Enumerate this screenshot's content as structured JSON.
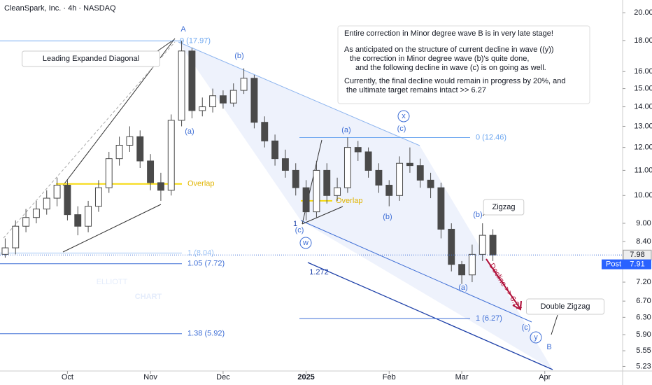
{
  "chart_data": {
    "type": "candlestick",
    "title": "CleanSpark, Inc. · 4h · NASDAQ",
    "log_scale": true,
    "color_up": "#ffffff",
    "color_down": "#4a4a4a",
    "xlim": [
      -0.5,
      59.5
    ],
    "xticks": [
      {
        "value": 6,
        "label": "Oct"
      },
      {
        "value": 14,
        "label": "Nov"
      },
      {
        "value": 21,
        "label": "Dec"
      },
      {
        "value": 29,
        "label": "2025"
      },
      {
        "value": 37,
        "label": "Feb"
      },
      {
        "value": 44,
        "label": "Mar"
      },
      {
        "value": 52,
        "label": "Apr"
      }
    ],
    "ylim": [
      5.14,
      20.99
    ],
    "yticks": [
      {
        "value": 5.23,
        "label": "5.23"
      },
      {
        "value": 5.55,
        "label": "5.55"
      },
      {
        "value": 5.9,
        "label": "5.90"
      },
      {
        "value": 6.3,
        "label": "6.30"
      },
      {
        "value": 6.7,
        "label": "6.70"
      },
      {
        "value": 7.2,
        "label": "7.20"
      },
      {
        "value": 8.4,
        "label": "8.40"
      },
      {
        "value": 9,
        "label": "9.00"
      },
      {
        "value": 10,
        "label": "10.00"
      },
      {
        "value": 11,
        "label": "11.00"
      },
      {
        "value": 12,
        "label": "12.00"
      },
      {
        "value": 13,
        "label": "13.00"
      },
      {
        "value": 14,
        "label": "14.00"
      },
      {
        "value": 15,
        "label": "15.00"
      },
      {
        "value": 16,
        "label": "16.00"
      },
      {
        "value": 18,
        "label": "18.00"
      },
      {
        "value": 20,
        "label": "20.00"
      }
    ],
    "open": [
      8.0,
      8.2,
      8.9,
      9.2,
      9.5,
      9.9,
      10.4,
      9.3,
      8.9,
      9.6,
      10.3,
      11.5,
      12.1,
      12.5,
      11.4,
      10.5,
      10.2,
      13.3,
      17.3,
      13.8,
      14.0,
      14.6,
      14.2,
      14.9,
      15.6,
      13.2,
      12.3,
      11.5,
      11.0,
      10.3,
      9.4,
      11.0,
      10.0,
      10.3,
      12.0,
      11.8,
      11.0,
      10.4,
      10.0,
      11.3,
      11.2,
      10.6,
      10.3,
      8.8,
      7.7,
      7.4,
      8.0,
      8.6
    ],
    "high": [
      8.5,
      9.1,
      9.5,
      9.8,
      10.2,
      10.7,
      10.6,
      9.6,
      9.8,
      10.6,
      11.8,
      12.5,
      13.0,
      12.8,
      11.7,
      10.9,
      13.6,
      17.97,
      17.5,
      14.5,
      15.0,
      14.9,
      15.3,
      16.2,
      15.8,
      13.5,
      12.6,
      11.9,
      11.3,
      10.6,
      11.4,
      11.3,
      10.7,
      12.46,
      12.3,
      12.0,
      11.3,
      10.6,
      11.6,
      12.0,
      11.5,
      10.9,
      10.5,
      9.0,
      7.8,
      8.3,
      9.0,
      8.8
    ],
    "low": [
      7.9,
      8.0,
      8.7,
      9.0,
      9.3,
      9.6,
      9.1,
      8.6,
      8.7,
      9.4,
      10.1,
      11.2,
      11.8,
      11.1,
      10.2,
      9.8,
      10.0,
      13.0,
      13.4,
      13.5,
      13.7,
      13.9,
      14.0,
      14.7,
      12.9,
      12.0,
      11.2,
      10.7,
      10.0,
      9.1,
      9.2,
      9.7,
      9.8,
      10.1,
      11.4,
      10.7,
      10.1,
      9.6,
      9.8,
      10.9,
      10.3,
      9.9,
      8.5,
      7.5,
      7.15,
      7.2,
      7.8,
      7.8
    ],
    "close": [
      8.2,
      8.9,
      9.2,
      9.5,
      9.9,
      10.4,
      9.3,
      8.9,
      9.6,
      10.3,
      11.5,
      12.1,
      12.5,
      11.4,
      10.5,
      10.2,
      13.3,
      17.3,
      13.8,
      14.0,
      14.6,
      14.2,
      14.9,
      15.6,
      13.2,
      12.3,
      11.5,
      11.0,
      10.3,
      9.4,
      11.0,
      10.0,
      10.3,
      12.0,
      11.8,
      11.0,
      10.4,
      10.0,
      11.3,
      11.2,
      10.6,
      10.3,
      8.8,
      7.7,
      7.4,
      8.0,
      8.6,
      7.98
    ],
    "levels": [
      {
        "value": 17.97,
        "label": "0 (17.97)",
        "color": "#6fa8f0"
      },
      {
        "value": 12.46,
        "label": "0 (12.46)",
        "color": "#6fa8f0"
      },
      {
        "value": 8.04,
        "label": "1 (8.04)",
        "color": "#9cc3f5"
      },
      {
        "value": 7.72,
        "label": "1.05 (7.72)",
        "color": "#3f6fd6"
      },
      {
        "value": 6.27,
        "label": "1 (6.27)",
        "color": "#3f6fd6"
      },
      {
        "value": 5.92,
        "label": "1.38 (5.92)",
        "color": "#3f6fd6"
      },
      {
        "value": 10.45,
        "label": "Overlap",
        "color": "#f5d90a"
      },
      {
        "value": 9.8,
        "label": "Overlap",
        "color": "#f5d90a"
      }
    ],
    "last_price": {
      "value": 7.98,
      "label": "7.98"
    },
    "post_price": {
      "value": 7.91,
      "label": "7.91",
      "tag": "Post"
    },
    "note": [
      "Entire correction in Minor degree wave B is in very late stage!",
      "As anticipated on the structure of current decline in wave ((y))",
      "the correction in Minor degree wave (b)'s quite done,",
      "and the following decline in wave (c) is on going as well.",
      "Currently, the final decline would remain in progress by 20%, and",
      "the ultimate target remains intact >>  6.27"
    ],
    "annotations": [
      "A",
      "Leading Expanded Diagonal",
      "(b)",
      "(a)",
      "x",
      "(c)",
      "(a)",
      "1",
      "(c)",
      "w",
      "(b)",
      "(b)",
      "Zigzag",
      "1.272",
      "Decline >> 6.27",
      "(a)",
      "Double Zigzag",
      "(c)",
      "y",
      "B",
      "ELLIOTT",
      "CHART"
    ]
  }
}
